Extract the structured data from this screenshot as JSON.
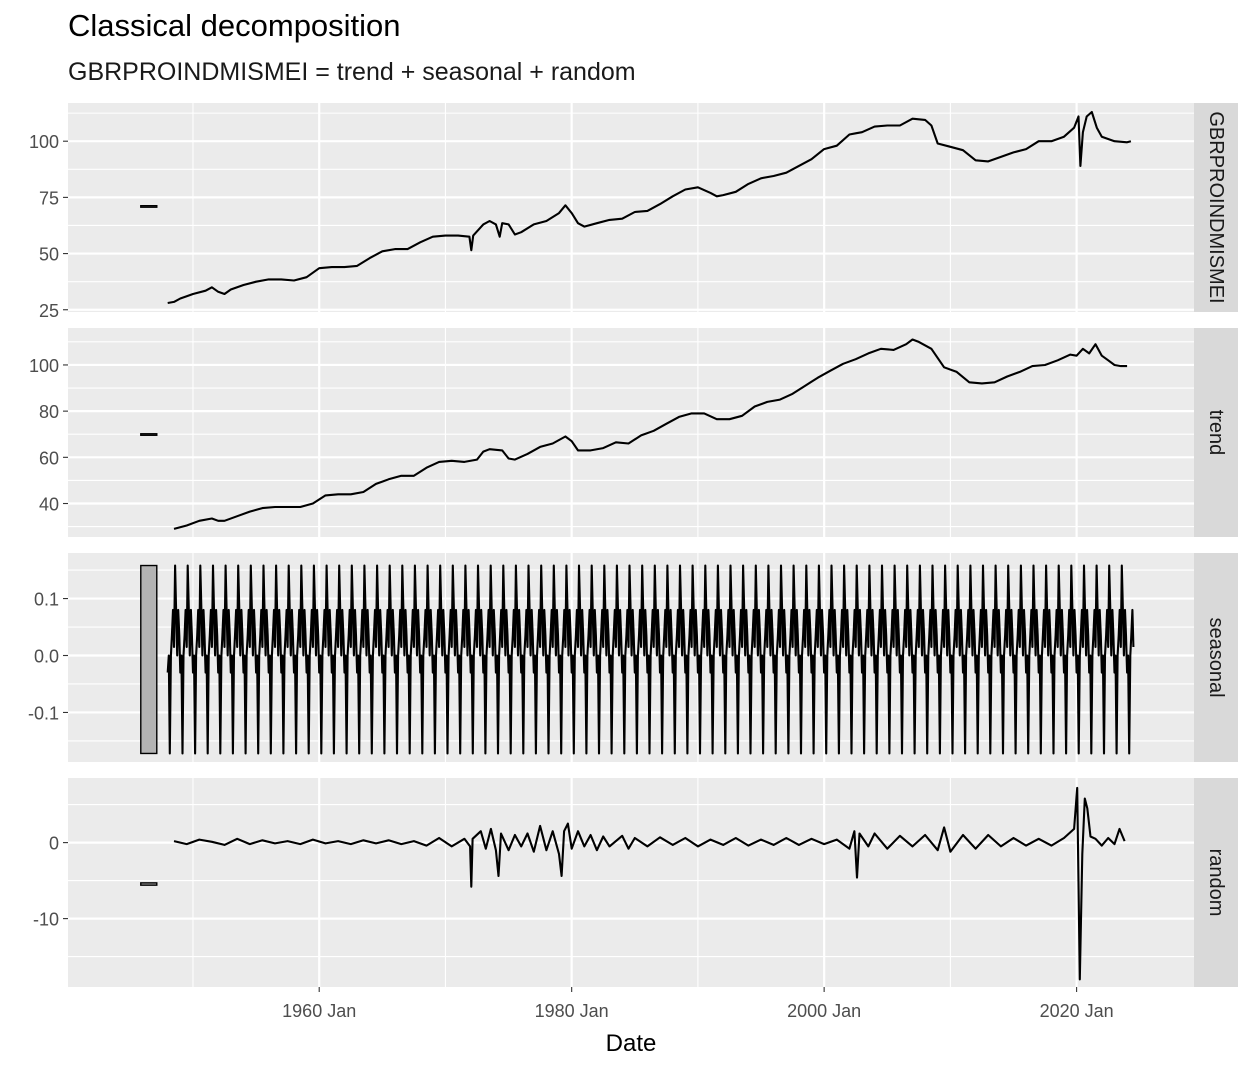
{
  "title": "Classical decomposition",
  "subtitle": "GBRPROINDMISMEI = trend + seasonal + random",
  "chart_data": {
    "type": "line",
    "xlabel": "Date",
    "x_ticks": [
      "1960 Jan",
      "1980 Jan",
      "2000 Jan",
      "2020 Jan"
    ],
    "x_tick_values": [
      1960,
      1980,
      2000,
      2020
    ],
    "x_range": [
      1940.1,
      2029.3
    ],
    "grid": true,
    "panels": [
      {
        "strip": "GBRPROINDMISMEI",
        "ylim": [
          24,
          117
        ],
        "yticks": [
          25,
          50,
          75,
          100
        ],
        "scale_bar": [
          70.9,
          71.3
        ],
        "series_points": [
          [
            1948.0,
            28
          ],
          [
            1948.5,
            28.5
          ],
          [
            1949.0,
            30
          ],
          [
            1949.5,
            31
          ],
          [
            1950.0,
            32
          ],
          [
            1951.0,
            33.5
          ],
          [
            1951.5,
            35
          ],
          [
            1952.0,
            33
          ],
          [
            1952.5,
            32
          ],
          [
            1953.0,
            34
          ],
          [
            1954.0,
            36
          ],
          [
            1955.0,
            37.5
          ],
          [
            1956.0,
            38.5
          ],
          [
            1957.0,
            38.5
          ],
          [
            1958.0,
            38
          ],
          [
            1959.0,
            39.5
          ],
          [
            1960.0,
            43.5
          ],
          [
            1961.0,
            44
          ],
          [
            1962.0,
            44
          ],
          [
            1963.0,
            44.5
          ],
          [
            1964.0,
            48
          ],
          [
            1965.0,
            51
          ],
          [
            1966.0,
            52
          ],
          [
            1967.0,
            52
          ],
          [
            1968.0,
            55
          ],
          [
            1969.0,
            57.5
          ],
          [
            1970.0,
            58
          ],
          [
            1971.0,
            58
          ],
          [
            1971.9,
            57.5
          ],
          [
            1972.05,
            51.5
          ],
          [
            1972.2,
            58
          ],
          [
            1973.0,
            63
          ],
          [
            1973.5,
            64.5
          ],
          [
            1974.0,
            63
          ],
          [
            1974.3,
            57.5
          ],
          [
            1974.5,
            63.5
          ],
          [
            1975.0,
            63
          ],
          [
            1975.5,
            58.5
          ],
          [
            1976.0,
            59.5
          ],
          [
            1977.0,
            63
          ],
          [
            1978.0,
            64.5
          ],
          [
            1979.0,
            68
          ],
          [
            1979.5,
            71.5
          ],
          [
            1980.0,
            68
          ],
          [
            1980.5,
            63.5
          ],
          [
            1981.0,
            62
          ],
          [
            1982.0,
            63.5
          ],
          [
            1983.0,
            65
          ],
          [
            1984.0,
            65.5
          ],
          [
            1985.0,
            68.5
          ],
          [
            1986.0,
            69
          ],
          [
            1987.0,
            72
          ],
          [
            1988.0,
            75.5
          ],
          [
            1989.0,
            78.5
          ],
          [
            1990.0,
            79.5
          ],
          [
            1991.0,
            77
          ],
          [
            1991.5,
            75.5
          ],
          [
            1992.0,
            76
          ],
          [
            1993.0,
            77.5
          ],
          [
            1994.0,
            81
          ],
          [
            1995.0,
            83.5
          ],
          [
            1996.0,
            84.5
          ],
          [
            1997.0,
            86
          ],
          [
            1998.0,
            89
          ],
          [
            1999.0,
            92
          ],
          [
            2000.0,
            96.5
          ],
          [
            2001.0,
            98
          ],
          [
            2002.0,
            103
          ],
          [
            2002.5,
            103.5
          ],
          [
            2003.0,
            104
          ],
          [
            2004.0,
            106.5
          ],
          [
            2005.0,
            107
          ],
          [
            2006.0,
            107
          ],
          [
            2007.0,
            110
          ],
          [
            2008.0,
            109.5
          ],
          [
            2008.5,
            107
          ],
          [
            2009.0,
            99
          ],
          [
            2010.0,
            97.5
          ],
          [
            2011.0,
            96
          ],
          [
            2012.0,
            91.5
          ],
          [
            2013.0,
            91
          ],
          [
            2014.0,
            93
          ],
          [
            2015.0,
            95
          ],
          [
            2016.0,
            96.5
          ],
          [
            2017.0,
            100
          ],
          [
            2018.0,
            100
          ],
          [
            2019.0,
            102
          ],
          [
            2019.8,
            106
          ],
          [
            2020.15,
            111
          ],
          [
            2020.3,
            89
          ],
          [
            2020.5,
            104
          ],
          [
            2020.8,
            111
          ],
          [
            2021.2,
            113
          ],
          [
            2021.6,
            106
          ],
          [
            2022.0,
            102
          ],
          [
            2023.0,
            100
          ],
          [
            2024.0,
            99.5
          ],
          [
            2024.3,
            100
          ]
        ]
      },
      {
        "strip": "trend",
        "ylim": [
          25.5,
          116
        ],
        "yticks": [
          40,
          60,
          80,
          100
        ],
        "scale_bar": [
          69.8,
          70.2
        ],
        "series_points": [
          [
            1948.5,
            29
          ],
          [
            1949.5,
            30.5
          ],
          [
            1950.5,
            32.5
          ],
          [
            1951.5,
            33.5
          ],
          [
            1952.0,
            32.5
          ],
          [
            1952.5,
            32.5
          ],
          [
            1953.5,
            34.5
          ],
          [
            1954.5,
            36.5
          ],
          [
            1955.5,
            38
          ],
          [
            1956.5,
            38.5
          ],
          [
            1957.5,
            38.5
          ],
          [
            1958.5,
            38.5
          ],
          [
            1959.5,
            40
          ],
          [
            1960.5,
            43.5
          ],
          [
            1961.5,
            44
          ],
          [
            1962.5,
            44
          ],
          [
            1963.5,
            45
          ],
          [
            1964.5,
            48.5
          ],
          [
            1965.5,
            50.5
          ],
          [
            1966.5,
            52
          ],
          [
            1967.5,
            52
          ],
          [
            1968.5,
            55.5
          ],
          [
            1969.5,
            58
          ],
          [
            1970.5,
            58.5
          ],
          [
            1971.5,
            58
          ],
          [
            1972.5,
            59
          ],
          [
            1973.0,
            62.5
          ],
          [
            1973.5,
            63.5
          ],
          [
            1974.5,
            63
          ],
          [
            1975.0,
            59.5
          ],
          [
            1975.5,
            59
          ],
          [
            1976.5,
            61.5
          ],
          [
            1977.5,
            64.5
          ],
          [
            1978.5,
            66
          ],
          [
            1979.5,
            69
          ],
          [
            1980.0,
            67
          ],
          [
            1980.5,
            63
          ],
          [
            1981.5,
            63
          ],
          [
            1982.5,
            64
          ],
          [
            1983.5,
            66.5
          ],
          [
            1984.5,
            66
          ],
          [
            1985.5,
            69.5
          ],
          [
            1986.5,
            71.5
          ],
          [
            1987.5,
            74.5
          ],
          [
            1988.5,
            77.5
          ],
          [
            1989.5,
            79
          ],
          [
            1990.5,
            79
          ],
          [
            1991.5,
            76.5
          ],
          [
            1992.5,
            76.5
          ],
          [
            1993.5,
            78
          ],
          [
            1994.5,
            82
          ],
          [
            1995.5,
            84
          ],
          [
            1996.5,
            85
          ],
          [
            1997.5,
            87.5
          ],
          [
            1998.5,
            91
          ],
          [
            1999.5,
            94.5
          ],
          [
            2000.5,
            97.5
          ],
          [
            2001.5,
            100.5
          ],
          [
            2002.5,
            102.5
          ],
          [
            2003.5,
            105
          ],
          [
            2004.5,
            107
          ],
          [
            2005.5,
            106.5
          ],
          [
            2006.5,
            109
          ],
          [
            2007.0,
            111
          ],
          [
            2007.5,
            110
          ],
          [
            2008.5,
            107
          ],
          [
            2009.5,
            99
          ],
          [
            2010.5,
            97
          ],
          [
            2011.5,
            92.5
          ],
          [
            2012.5,
            92
          ],
          [
            2013.5,
            92.5
          ],
          [
            2014.5,
            95
          ],
          [
            2015.5,
            97
          ],
          [
            2016.5,
            99.5
          ],
          [
            2017.5,
            100
          ],
          [
            2018.5,
            102
          ],
          [
            2019.5,
            104.5
          ],
          [
            2020.0,
            104
          ],
          [
            2020.5,
            107
          ],
          [
            2021.0,
            105
          ],
          [
            2021.5,
            109
          ],
          [
            2022.0,
            104
          ],
          [
            2022.5,
            102
          ],
          [
            2023.0,
            100
          ],
          [
            2023.5,
            99.5
          ],
          [
            2024.0,
            99.5
          ]
        ]
      },
      {
        "strip": "seasonal",
        "ylim": [
          -0.187,
          0.18
        ],
        "yticks": [
          -0.1,
          0.0,
          0.1
        ],
        "ytick_labels": [
          "-0.1",
          "0.0",
          "0.1"
        ],
        "scale_bar": [
          -0.172,
          0.158
        ],
        "start": 1948.0,
        "end": 2024.5,
        "monthly_pattern": [
          -0.03,
          0.0,
          -0.172,
          0.0,
          0.035,
          0.08,
          0.015,
          0.158,
          0.08,
          0.0,
          0.08,
          0.035
        ]
      },
      {
        "strip": "random",
        "ylim": [
          -19,
          8.5
        ],
        "yticks": [
          -10,
          0
        ],
        "scale_bar": [
          -5.6,
          -5.3
        ],
        "series_points": [
          [
            1948.5,
            0.2
          ],
          [
            1949.5,
            -0.2
          ],
          [
            1950.5,
            0.4
          ],
          [
            1951.5,
            0.1
          ],
          [
            1952.5,
            -0.3
          ],
          [
            1953.5,
            0.5
          ],
          [
            1954.5,
            -0.2
          ],
          [
            1955.5,
            0.3
          ],
          [
            1956.5,
            -0.1
          ],
          [
            1957.5,
            0.2
          ],
          [
            1958.5,
            -0.2
          ],
          [
            1959.5,
            0.4
          ],
          [
            1960.5,
            -0.1
          ],
          [
            1961.5,
            0.2
          ],
          [
            1962.5,
            -0.2
          ],
          [
            1963.5,
            0.3
          ],
          [
            1964.5,
            -0.1
          ],
          [
            1965.5,
            0.3
          ],
          [
            1966.5,
            -0.2
          ],
          [
            1967.5,
            0.2
          ],
          [
            1968.5,
            -0.4
          ],
          [
            1969.5,
            0.6
          ],
          [
            1970.5,
            -0.5
          ],
          [
            1971.5,
            0.5
          ],
          [
            1971.95,
            -0.5
          ],
          [
            1972.05,
            -5.8
          ],
          [
            1972.15,
            0.5
          ],
          [
            1972.8,
            1.5
          ],
          [
            1973.2,
            -0.8
          ],
          [
            1973.6,
            1.8
          ],
          [
            1974.0,
            -1.0
          ],
          [
            1974.2,
            -4.4
          ],
          [
            1974.4,
            1.2
          ],
          [
            1975.0,
            -1.0
          ],
          [
            1975.5,
            1.0
          ],
          [
            1976.0,
            -0.5
          ],
          [
            1976.5,
            1.2
          ],
          [
            1977.0,
            -1.2
          ],
          [
            1977.5,
            2.2
          ],
          [
            1978.0,
            -1.0
          ],
          [
            1978.5,
            1.5
          ],
          [
            1979.0,
            -1.5
          ],
          [
            1979.2,
            -4.4
          ],
          [
            1979.4,
            1.5
          ],
          [
            1979.7,
            2.5
          ],
          [
            1980.0,
            -0.8
          ],
          [
            1980.5,
            1.5
          ],
          [
            1981.0,
            -0.5
          ],
          [
            1981.5,
            1.0
          ],
          [
            1982.0,
            -1.0
          ],
          [
            1982.5,
            0.8
          ],
          [
            1983.0,
            -0.5
          ],
          [
            1984.0,
            0.9
          ],
          [
            1984.5,
            -0.8
          ],
          [
            1985.0,
            0.6
          ],
          [
            1986.0,
            -0.5
          ],
          [
            1987.0,
            0.7
          ],
          [
            1988.0,
            -0.3
          ],
          [
            1989.0,
            0.6
          ],
          [
            1990.0,
            -0.5
          ],
          [
            1991.0,
            0.4
          ],
          [
            1992.0,
            -0.3
          ],
          [
            1993.0,
            0.6
          ],
          [
            1994.0,
            -0.4
          ],
          [
            1995.0,
            0.4
          ],
          [
            1996.0,
            -0.3
          ],
          [
            1997.0,
            0.6
          ],
          [
            1998.0,
            -0.3
          ],
          [
            1999.0,
            0.5
          ],
          [
            2000.0,
            -0.2
          ],
          [
            2001.0,
            0.4
          ],
          [
            2002.0,
            -0.8
          ],
          [
            2002.4,
            1.5
          ],
          [
            2002.6,
            -4.6
          ],
          [
            2002.8,
            1.2
          ],
          [
            2003.5,
            -0.5
          ],
          [
            2004.0,
            1.2
          ],
          [
            2005.0,
            -0.8
          ],
          [
            2006.0,
            0.9
          ],
          [
            2007.0,
            -0.5
          ],
          [
            2008.0,
            1.0
          ],
          [
            2009.0,
            -1.0
          ],
          [
            2009.5,
            2.0
          ],
          [
            2010.0,
            -1.2
          ],
          [
            2011.0,
            1.0
          ],
          [
            2012.0,
            -0.8
          ],
          [
            2013.0,
            1.0
          ],
          [
            2014.0,
            -0.5
          ],
          [
            2015.0,
            0.6
          ],
          [
            2016.0,
            -0.4
          ],
          [
            2017.0,
            0.5
          ],
          [
            2018.0,
            -0.4
          ],
          [
            2019.0,
            0.6
          ],
          [
            2019.8,
            1.8
          ],
          [
            2020.05,
            7.2
          ],
          [
            2020.25,
            -18
          ],
          [
            2020.45,
            -1.5
          ],
          [
            2020.65,
            5.8
          ],
          [
            2020.85,
            4.5
          ],
          [
            2021.1,
            0.8
          ],
          [
            2021.5,
            0.5
          ],
          [
            2022.0,
            -0.4
          ],
          [
            2022.5,
            0.6
          ],
          [
            2023.0,
            -0.2
          ],
          [
            2023.4,
            1.8
          ],
          [
            2023.8,
            0.2
          ]
        ]
      }
    ]
  }
}
